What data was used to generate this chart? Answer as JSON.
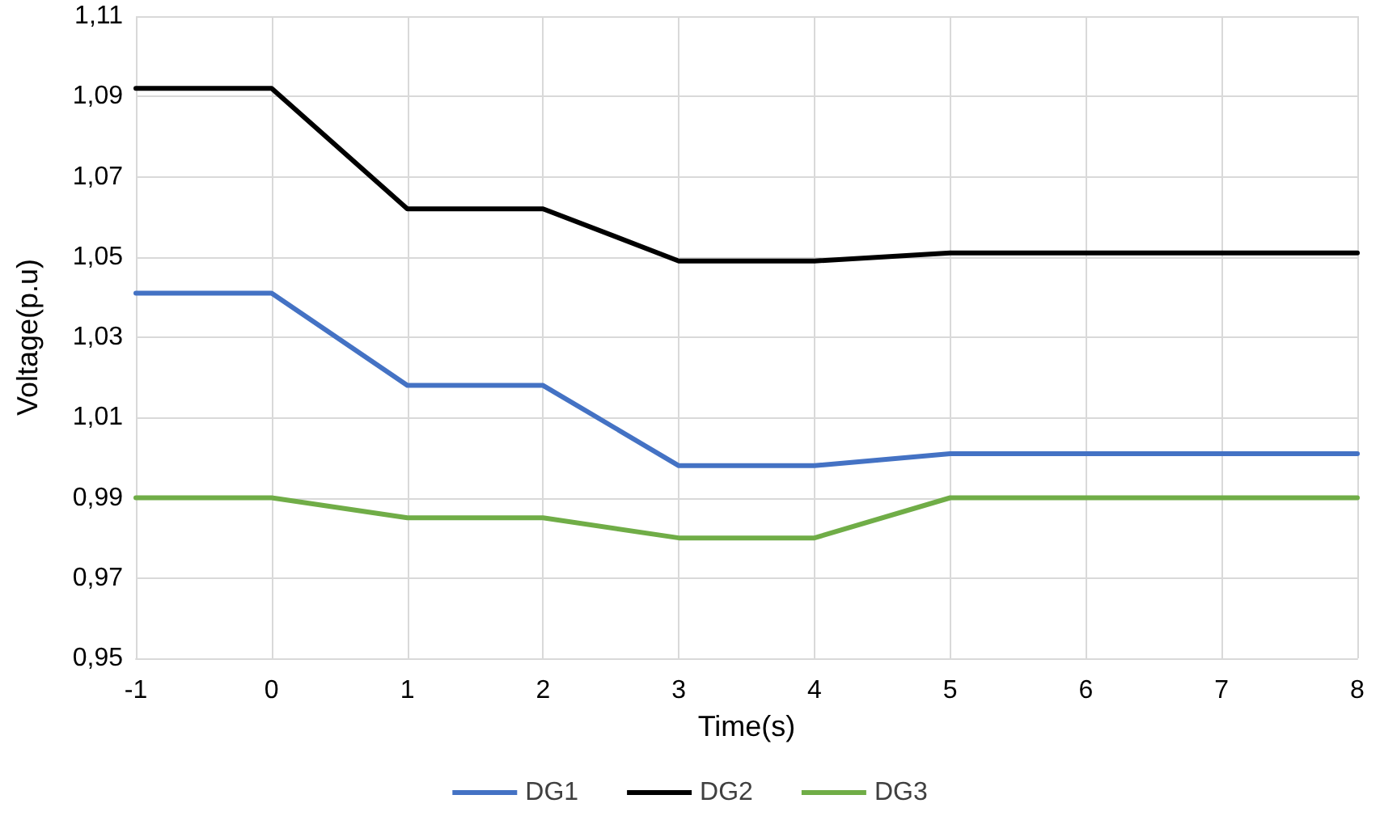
{
  "chart_data": {
    "type": "line",
    "xlabel": "Time(s)",
    "ylabel": "Voltage(p.u)",
    "x": [
      -1,
      0,
      1,
      2,
      3,
      4,
      5,
      6,
      7,
      8
    ],
    "series": [
      {
        "name": "DG1",
        "color": "#4472c4",
        "values": [
          1.041,
          1.041,
          1.018,
          1.018,
          0.998,
          0.998,
          1.001,
          1.001,
          1.001,
          1.001
        ]
      },
      {
        "name": "DG2",
        "color": "#000000",
        "values": [
          1.092,
          1.092,
          1.062,
          1.062,
          1.049,
          1.049,
          1.051,
          1.051,
          1.051,
          1.051
        ]
      },
      {
        "name": "DG3",
        "color": "#70ad47",
        "values": [
          0.99,
          0.99,
          0.985,
          0.985,
          0.98,
          0.98,
          0.99,
          0.99,
          0.99,
          0.99
        ]
      }
    ],
    "xlim": [
      -1,
      8
    ],
    "xticks": [
      -1,
      0,
      1,
      2,
      3,
      4,
      5,
      6,
      7,
      8
    ],
    "ylim": [
      0.95,
      1.11
    ],
    "yticks": [
      {
        "value": 0.95,
        "label": "0,95"
      },
      {
        "value": 0.97,
        "label": "0,97"
      },
      {
        "value": 0.99,
        "label": "0,99"
      },
      {
        "value": 1.01,
        "label": "1,01"
      },
      {
        "value": 1.03,
        "label": "1,03"
      },
      {
        "value": 1.05,
        "label": "1,05"
      },
      {
        "value": 1.07,
        "label": "1,07"
      },
      {
        "value": 1.09,
        "label": "1,09"
      },
      {
        "value": 1.11,
        "label": "1,11"
      }
    ],
    "grid": true,
    "legend": "bottom",
    "marker": "none",
    "line_style": "solid"
  }
}
